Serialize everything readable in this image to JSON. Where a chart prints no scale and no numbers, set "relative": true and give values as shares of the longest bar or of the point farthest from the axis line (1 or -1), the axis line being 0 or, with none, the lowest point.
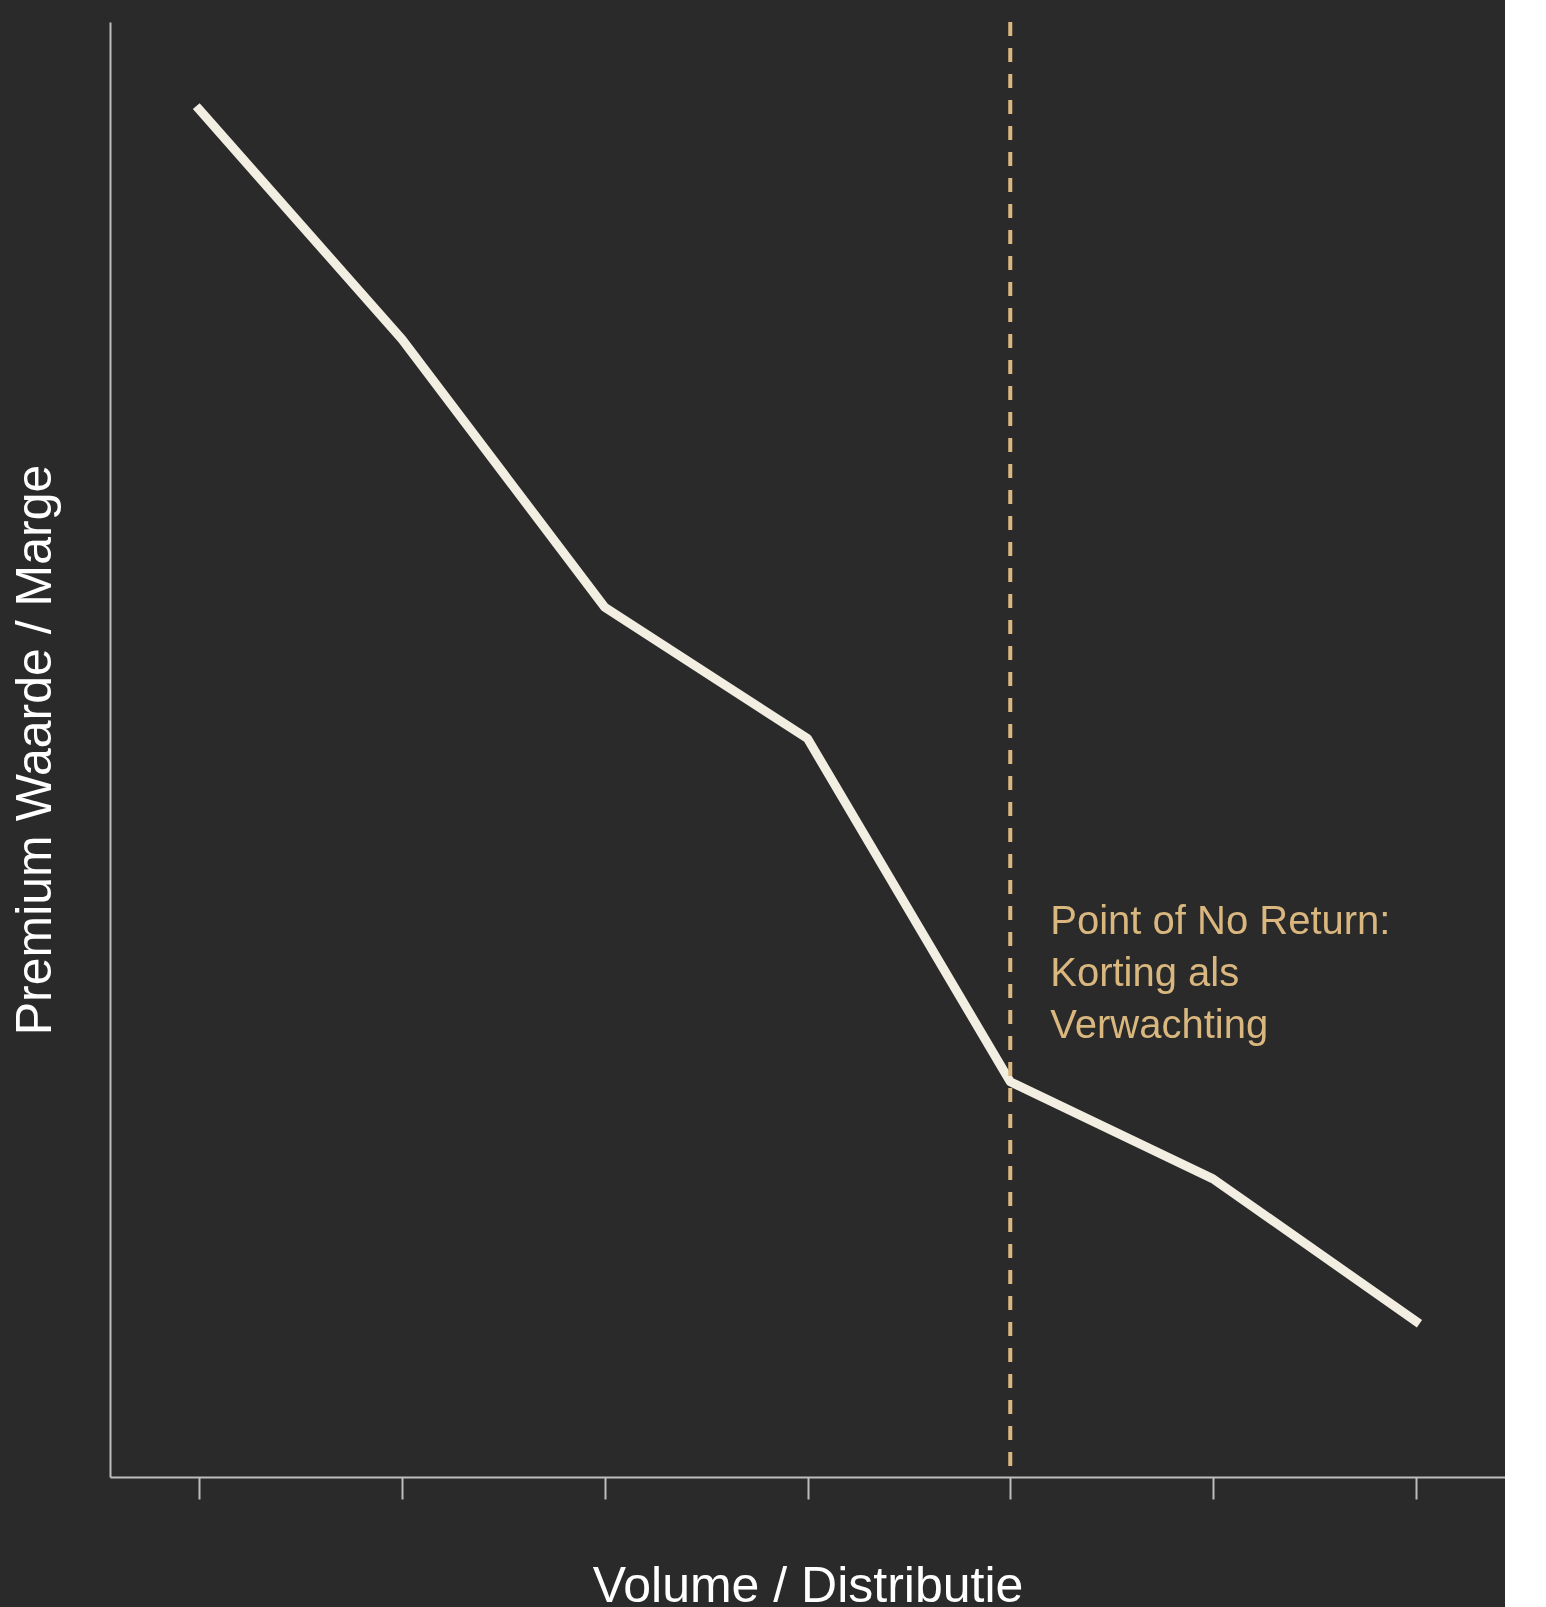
{
  "chart_data": {
    "type": "line",
    "relative": true,
    "xlabel": "Volume / Distributie",
    "ylabel": "Premium Waarde / Marge",
    "categories": [
      null,
      null,
      null,
      null,
      null,
      null,
      null
    ],
    "series": [
      {
        "color": "#f3eee2",
        "values": [
          1,
          0.832,
          0.636,
          0.54,
          0.289,
          0.218,
          0.114
        ]
      }
    ],
    "annotations": [
      "Point of No Return:\nKorting als\nVerwachting"
    ],
    "grid": false,
    "marker": "none",
    "line_style": "solid"
  }
}
